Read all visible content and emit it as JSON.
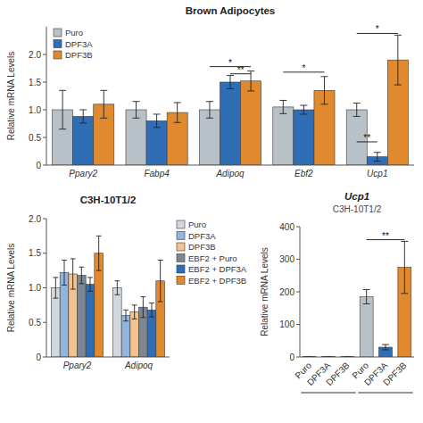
{
  "chart_data": [
    {
      "type": "bar",
      "title": "Brown Adipocytes",
      "ylabel": "Relative mRNA Levels",
      "categories": [
        "Ppary2",
        "Fabp4",
        "Adipoq",
        "Ebf2",
        "Ucp1"
      ],
      "series": [
        {
          "name": "Puro",
          "color": "#b8c0c8",
          "values": [
            1.0,
            1.0,
            1.0,
            1.05,
            1.0
          ],
          "errors": [
            0.35,
            0.15,
            0.15,
            0.12,
            0.12
          ]
        },
        {
          "name": "DPF3A",
          "color": "#2f6db5",
          "values": [
            0.88,
            0.8,
            1.5,
            1.0,
            0.15
          ],
          "errors": [
            0.12,
            0.12,
            0.12,
            0.08,
            0.08
          ]
        },
        {
          "name": "DPF3B",
          "color": "#e0892f",
          "values": [
            1.1,
            0.95,
            1.52,
            1.35,
            1.9
          ],
          "errors": [
            0.25,
            0.18,
            0.18,
            0.25,
            0.45
          ]
        }
      ],
      "ylim": [
        0,
        2.5
      ],
      "yticks": [
        0,
        0.5,
        {
          "value": 1.0,
          "label": "1.0"
        },
        1.5,
        {
          "value": 2.0,
          "label": "2.0"
        }
      ],
      "grid": false,
      "legend": "upper left",
      "annotations": [
        {
          "text": "*",
          "category": 2,
          "from_series": 0,
          "to_series": 2,
          "y": 1.78
        },
        {
          "text": "**",
          "category": 2,
          "from_series": 1,
          "to_series": 2,
          "y": 1.65
        },
        {
          "text": "*",
          "category": 3,
          "from_series": 0,
          "to_series": 2,
          "y": 1.68
        },
        {
          "text": "*",
          "category": 4,
          "from_series": 0,
          "to_series": 2,
          "y": 2.38
        },
        {
          "text": "**",
          "category": 4,
          "from_series": 0,
          "to_series": 1,
          "y": 0.42
        }
      ]
    },
    {
      "type": "bar",
      "title": "C3H-10T1/2",
      "ylabel": "Relative mRNA Levels",
      "categories": [
        "Ppary2",
        "Adipoq"
      ],
      "series": [
        {
          "name": "Puro",
          "color": "#d3d8dd",
          "values": [
            1.0,
            1.0
          ],
          "errors": [
            0.15,
            0.1
          ]
        },
        {
          "name": "DPF3A",
          "color": "#93b4dc",
          "values": [
            1.22,
            0.6
          ],
          "errors": [
            0.18,
            0.08
          ]
        },
        {
          "name": "DPF3B",
          "color": "#f0c38f",
          "values": [
            1.2,
            0.65
          ],
          "errors": [
            0.22,
            0.1
          ]
        },
        {
          "name": "EBF2 + Puro",
          "color": "#7d8791",
          "values": [
            1.18,
            0.72
          ],
          "errors": [
            0.12,
            0.15
          ]
        },
        {
          "name": "EBF2 + DPF3A",
          "color": "#2f6db5",
          "values": [
            1.05,
            0.68
          ],
          "errors": [
            0.1,
            0.1
          ]
        },
        {
          "name": "EBF2 + DPF3B",
          "color": "#e0892f",
          "values": [
            1.5,
            1.1
          ],
          "errors": [
            0.25,
            0.3
          ]
        }
      ],
      "ylim": [
        0,
        2.0
      ],
      "yticks": [
        0,
        0.5,
        {
          "value": 1.0,
          "label": "1.0"
        },
        1.5,
        {
          "value": 2.0,
          "label": "2.0"
        }
      ],
      "grid": false,
      "legend": "right"
    },
    {
      "type": "bar",
      "title": "Ucp1",
      "subtitle": "C3H-10T1/2",
      "ylabel": "Relative mRNA Levels",
      "categories": [
        "Puro",
        "DPF3A",
        "DPF3B",
        "Puro",
        "DPF3A",
        "DPF3B"
      ],
      "values": [
        1.0,
        1.0,
        1.0,
        185,
        30,
        275
      ],
      "errors": [
        0.5,
        0.5,
        0.5,
        22,
        8,
        80
      ],
      "colors": [
        "#b8c0c8",
        "#2f6db5",
        "#e0892f",
        "#b8c0c8",
        "#2f6db5",
        "#e0892f"
      ],
      "ylim": [
        0,
        400
      ],
      "yticks": [
        0,
        100,
        200,
        300,
        400
      ],
      "grid": false,
      "annotations": [
        {
          "text": "**",
          "from": 3,
          "to": 5,
          "y": 360
        }
      ]
    }
  ]
}
